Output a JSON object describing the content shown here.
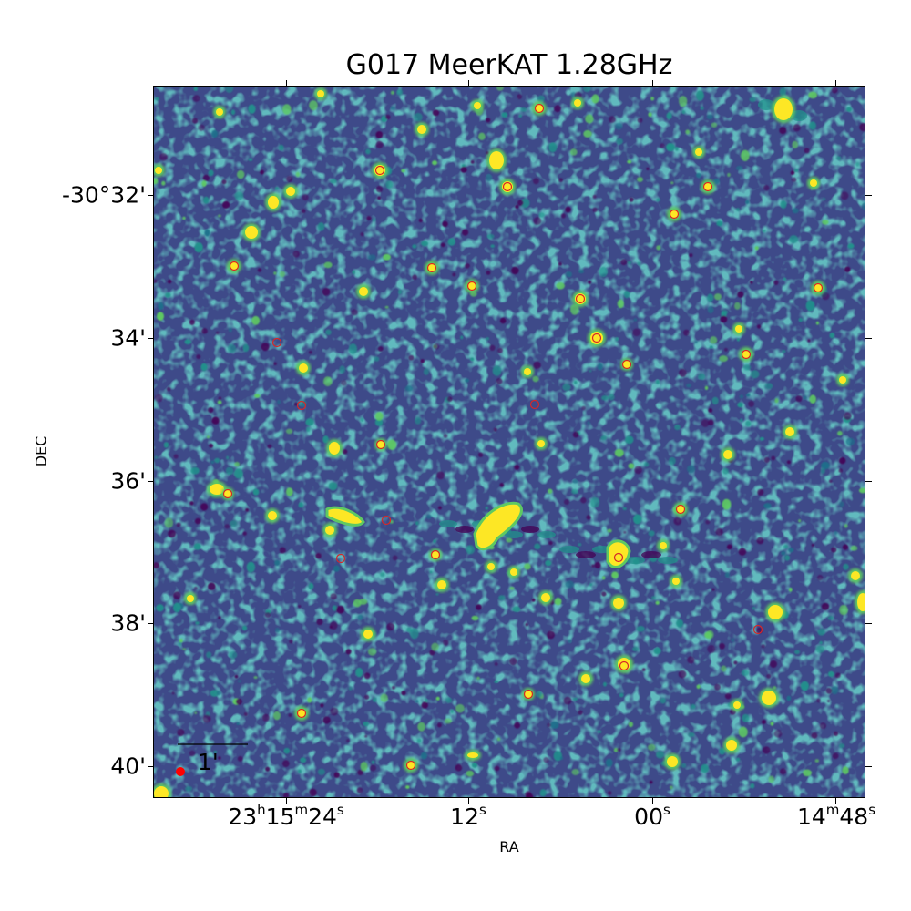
{
  "title": "G017 MeerKAT 1.28GHz",
  "xlabel": "RA",
  "ylabel": "DEC",
  "x_ticks": [
    {
      "h": "23",
      "hu": "h",
      "m": "15",
      "mu": "m",
      "s": "24",
      "su": "s"
    },
    {
      "h": "",
      "hu": "",
      "m": "",
      "mu": "",
      "s": "12",
      "su": "s"
    },
    {
      "h": "",
      "hu": "",
      "m": "",
      "mu": "",
      "s": "00",
      "su": "s"
    },
    {
      "h": "",
      "hu": "",
      "m": "14",
      "mu": "m",
      "s": "48",
      "su": "s"
    }
  ],
  "y_ticks": [
    "-30°32'",
    "34'",
    "36'",
    "38'",
    "40'"
  ],
  "scalebar_label": "1'",
  "colormap": [
    "#440154",
    "#3b528b",
    "#21918c",
    "#5ec962",
    "#fde725"
  ],
  "marker_color": "#d62728",
  "beam_color": "#ff0000"
}
